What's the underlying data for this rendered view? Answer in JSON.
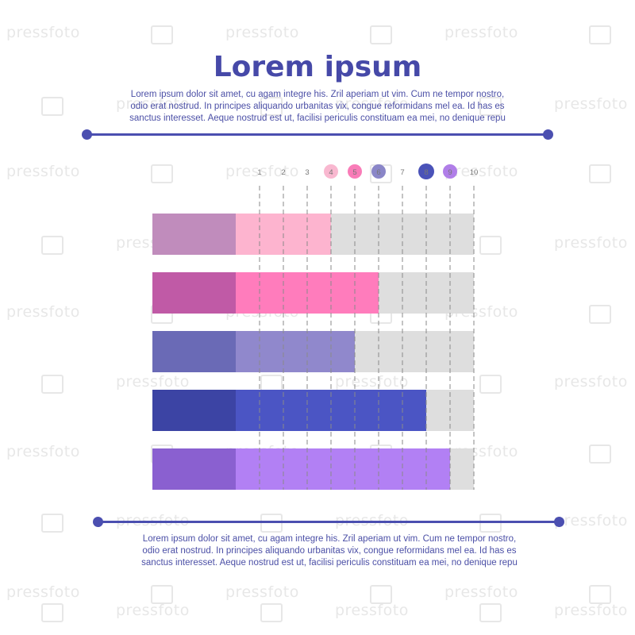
{
  "header": {
    "title": "Lorem ipsum",
    "paragraph_lines": [
      "Lorem ipsum dolor sit amet, cu agam integre his. Zril aperiam ut vim. Cum ne tempor nostro,",
      "odio erat nostrud. In principes aliquando urbanitas vix, congue reformidans mel ea. Id has es",
      "sanctus interesset. Aeque nostrud est ut, facilisi periculis constituam ea mei, no denique repu"
    ]
  },
  "footer": {
    "paragraph_lines": [
      "Lorem ipsum dolor sit amet, cu agam integre his. Zril aperiam ut vim. Cum ne tempor nostro,",
      "odio erat nostrud. In principes aliquando urbanitas vix, congue reformidans mel ea. Id has es",
      "sanctus interesset. Aeque nostrud est ut, facilisi periculis constituam ea mei, no denique repu"
    ]
  },
  "watermark": "pressfoto",
  "colors": {
    "accent": "#4b4fb0",
    "track": "#dedede",
    "grid": "#8a8a8a",
    "bars": [
      {
        "base": "#c08cbc",
        "fill": "#fdb4cf",
        "marker": "#f9b8d0"
      },
      {
        "base": "#c05aa6",
        "fill": "#ff7cbc",
        "marker": "#f97cb8"
      },
      {
        "base": "#6a6ab6",
        "fill": "#9088cc",
        "marker": "#8a86c8"
      },
      {
        "base": "#3c44a4",
        "fill": "#4b55c4",
        "marker": "#4a52b8"
      },
      {
        "base": "#8a60d0",
        "fill": "#b280f4",
        "marker": "#b07ee8"
      }
    ]
  },
  "chart_data": {
    "type": "bar",
    "orientation": "horizontal",
    "ticks": [
      "1",
      "2",
      "3",
      "4",
      "5",
      "6",
      "7",
      "8",
      "9",
      "10"
    ],
    "marker_ticks": [
      "4",
      "5",
      "6",
      "8",
      "9"
    ],
    "xlim": [
      0,
      10
    ],
    "values": [
      4,
      6,
      5,
      8,
      9
    ],
    "grid": true
  }
}
